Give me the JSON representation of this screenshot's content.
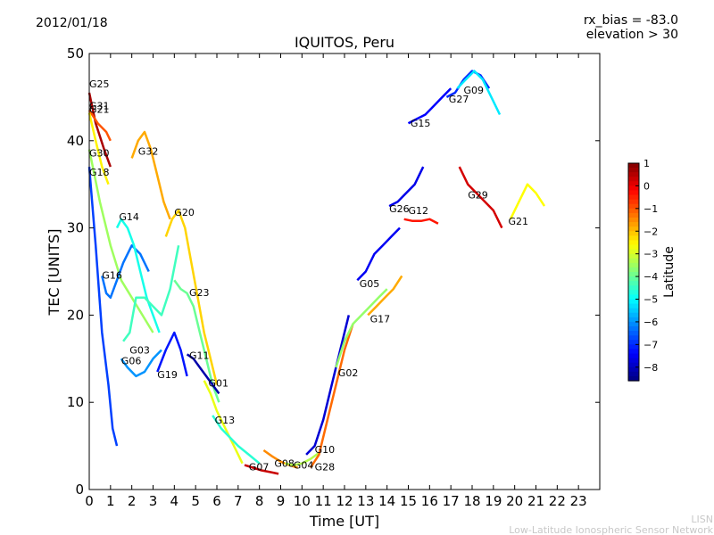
{
  "header": {
    "date": "2012/01/18",
    "bias_line": "rx_bias = -83.0",
    "elevation_line": "elevation > 30"
  },
  "footer": {
    "line1": "LISN",
    "line2": "Low-Latitude Ionospheric Sensor Network"
  },
  "colorbar": {
    "label": "Latitude",
    "ticks": [
      "1",
      "0",
      "−1",
      "−2",
      "−3",
      "−4",
      "−5",
      "−6",
      "−7",
      "−8"
    ],
    "range": [
      -8.6,
      1.0
    ],
    "colormap": [
      "#00007f",
      "#0000ff",
      "#007fff",
      "#00ffff",
      "#7fff7f",
      "#ffff00",
      "#ff7f00",
      "#ff0000",
      "#7f0000"
    ]
  },
  "chart_data": {
    "type": "line",
    "title": "IQUITOS, Peru",
    "xlabel": "Time [UT]",
    "ylabel": "TEC [UNITS]",
    "xlim": [
      0,
      24
    ],
    "ylim": [
      0,
      50
    ],
    "x_ticks": [
      "0",
      "1",
      "2",
      "3",
      "4",
      "5",
      "6",
      "7",
      "8",
      "9",
      "10",
      "11",
      "12",
      "13",
      "14",
      "15",
      "16",
      "17",
      "18",
      "19",
      "20",
      "21",
      "22",
      "23"
    ],
    "y_ticks": [
      "0",
      "10",
      "20",
      "30",
      "40",
      "50"
    ],
    "grid": false,
    "series": [
      {
        "name": "G25",
        "label_x": 0.0,
        "label_y": 46.5,
        "x": [
          0,
          0.3,
          0.7,
          1.0
        ],
        "y": [
          45.5,
          42,
          39,
          37
        ],
        "lat": 0.6
      },
      {
        "name": "G31",
        "label_x": 0.0,
        "label_y": 44.0,
        "x": [
          0,
          0.4,
          0.8,
          1.0
        ],
        "y": [
          43.5,
          42,
          41,
          40
        ],
        "lat": -1.0
      },
      {
        "name": "G21",
        "label_x": 0.0,
        "label_y": 43.6,
        "x": [
          0,
          0.3,
          0.6,
          0.9
        ],
        "y": [
          43.2,
          40,
          37,
          35
        ],
        "lat": -2.5
      },
      {
        "name": "G30",
        "label_x": 0.0,
        "label_y": 38.6,
        "x": [
          0,
          0.5,
          1.0,
          1.5,
          2.0,
          2.5,
          3.0
        ],
        "y": [
          39,
          33,
          28,
          24,
          22,
          20,
          18
        ],
        "lat": -3.5
      },
      {
        "name": "G18",
        "label_x": 0.0,
        "label_y": 36.4,
        "x": [
          0,
          0.3,
          0.6,
          0.9,
          1.1,
          1.3
        ],
        "y": [
          37,
          28,
          18,
          12,
          7,
          5
        ],
        "lat": -6.8
      },
      {
        "name": "G16",
        "label_x": 0.6,
        "label_y": 24.6,
        "x": [
          0.6,
          0.8,
          1.0,
          1.3,
          1.6,
          2.0,
          2.4,
          2.8
        ],
        "y": [
          24.5,
          22.5,
          22,
          24,
          26,
          28,
          27,
          25
        ],
        "lat": -6.3
      },
      {
        "name": "G14",
        "label_x": 1.4,
        "label_y": 31.3,
        "x": [
          1.3,
          1.5,
          1.8,
          2.1,
          2.4,
          2.7,
          3.0,
          3.3
        ],
        "y": [
          30,
          31,
          30,
          28,
          25,
          22,
          20,
          18
        ],
        "lat": -4.8
      },
      {
        "name": "G32",
        "label_x": 2.3,
        "label_y": 38.8,
        "x": [
          2.0,
          2.3,
          2.6,
          2.9,
          3.2,
          3.5,
          3.8
        ],
        "y": [
          38,
          40,
          41,
          39,
          36,
          33,
          31
        ],
        "lat": -1.8
      },
      {
        "name": "G03",
        "label_x": 1.9,
        "label_y": 16.0,
        "x": [
          1.6,
          1.9,
          2.2,
          2.6,
          3.0,
          3.4,
          3.8,
          4.2
        ],
        "y": [
          17,
          18,
          22,
          22,
          21,
          20,
          23,
          28
        ],
        "lat": -4.4
      },
      {
        "name": "G06",
        "label_x": 1.5,
        "label_y": 14.8,
        "x": [
          1.5,
          1.8,
          2.2,
          2.6,
          3.0,
          3.4
        ],
        "y": [
          15,
          14,
          13,
          13.5,
          15,
          16
        ],
        "lat": -6.0
      },
      {
        "name": "G19",
        "label_x": 3.2,
        "label_y": 13.2,
        "x": [
          3.2,
          3.6,
          4.0,
          4.3,
          4.6
        ],
        "y": [
          13.5,
          16,
          18,
          16,
          13
        ],
        "lat": -7.2
      },
      {
        "name": "G20",
        "label_x": 4.0,
        "label_y": 31.8,
        "x": [
          3.6,
          3.9,
          4.2,
          4.5,
          4.8,
          5.1,
          5.4,
          5.7,
          6.0
        ],
        "y": [
          29,
          31,
          32,
          30,
          26,
          22,
          18,
          15,
          12
        ],
        "lat": -2.2
      },
      {
        "name": "G23",
        "label_x": 4.7,
        "label_y": 22.6,
        "x": [
          4.0,
          4.3,
          4.6,
          4.9,
          5.2,
          5.5,
          5.8,
          6.1
        ],
        "y": [
          24,
          23,
          22.5,
          21,
          18,
          15,
          12,
          10
        ],
        "lat": -4.0
      },
      {
        "name": "G11",
        "label_x": 4.7,
        "label_y": 15.4,
        "x": [
          4.6,
          4.9,
          5.2,
          5.5,
          5.8,
          6.1
        ],
        "y": [
          15.5,
          15,
          14,
          13,
          12,
          11
        ],
        "lat": -8.2
      },
      {
        "name": "G01",
        "label_x": 5.6,
        "label_y": 12.2,
        "x": [
          5.4,
          5.7,
          6.0,
          6.4,
          6.8,
          7.2
        ],
        "y": [
          12.5,
          11,
          9,
          7,
          5,
          3
        ],
        "lat": -2.8
      },
      {
        "name": "G13",
        "label_x": 5.9,
        "label_y": 8.0,
        "x": [
          5.8,
          6.2,
          6.6,
          7.0,
          7.5,
          8.0
        ],
        "y": [
          8.5,
          7,
          6,
          5,
          4,
          3
        ],
        "lat": -4.6
      },
      {
        "name": "G07",
        "label_x": 7.5,
        "label_y": 2.6,
        "x": [
          7.3,
          7.7,
          8.1,
          8.5,
          8.9
        ],
        "y": [
          2.8,
          2.5,
          2.2,
          2.0,
          1.8
        ],
        "lat": 0.3
      },
      {
        "name": "G08",
        "label_x": 8.7,
        "label_y": 3.0,
        "x": [
          8.2,
          8.6,
          9.0,
          9.4,
          9.8
        ],
        "y": [
          4.5,
          3.8,
          3.2,
          2.8,
          2.5
        ],
        "lat": -1.5
      },
      {
        "name": "G04",
        "label_x": 9.6,
        "label_y": 2.8,
        "x": [
          9.2,
          9.6,
          10.0,
          10.4,
          10.8
        ],
        "y": [
          3.0,
          2.8,
          3.0,
          3.5,
          4.2
        ],
        "lat": -3.3
      },
      {
        "name": "G10",
        "label_x": 10.6,
        "label_y": 4.6,
        "x": [
          10.2,
          10.6,
          11.0,
          11.4,
          11.8,
          12.2
        ],
        "y": [
          4,
          5,
          8,
          12,
          16,
          20
        ],
        "lat": -7.8
      },
      {
        "name": "G28",
        "label_x": 10.6,
        "label_y": 2.6,
        "x": [
          10.4,
          10.8,
          11.2,
          11.6,
          12.0,
          12.4
        ],
        "y": [
          2.5,
          4,
          8,
          12,
          16,
          19
        ],
        "lat": -1.2
      },
      {
        "name": "G02",
        "label_x": 11.7,
        "label_y": 13.4,
        "x": [
          11.6,
          12.0,
          12.4,
          12.8,
          13.2,
          13.6,
          14.0
        ],
        "y": [
          14,
          17,
          19,
          20,
          21,
          22,
          23
        ],
        "lat": -3.6
      },
      {
        "name": "G05",
        "label_x": 12.7,
        "label_y": 23.6,
        "x": [
          12.6,
          13.0,
          13.4,
          13.8,
          14.2,
          14.6
        ],
        "y": [
          24,
          25,
          27,
          28,
          29,
          30
        ],
        "lat": -7.5
      },
      {
        "name": "G17",
        "label_x": 13.2,
        "label_y": 19.6,
        "x": [
          13.1,
          13.5,
          13.9,
          14.3,
          14.7
        ],
        "y": [
          20,
          21,
          22,
          23,
          24.5
        ],
        "lat": -1.8
      },
      {
        "name": "G26",
        "label_x": 14.1,
        "label_y": 32.2,
        "x": [
          14.1,
          14.5,
          14.9,
          15.3,
          15.7
        ],
        "y": [
          32.5,
          33,
          34,
          35,
          37
        ],
        "lat": -7.6
      },
      {
        "name": "G12",
        "label_x": 15.0,
        "label_y": 32.0,
        "x": [
          14.8,
          15.2,
          15.6,
          16.0,
          16.4
        ],
        "y": [
          31,
          30.8,
          30.8,
          31,
          30.5
        ],
        "lat": -0.4
      },
      {
        "name": "G15",
        "label_x": 15.1,
        "label_y": 42.0,
        "x": [
          15.0,
          15.4,
          15.8,
          16.2,
          16.6,
          17.0
        ],
        "y": [
          42,
          42.5,
          43,
          44,
          45,
          46
        ],
        "lat": -7.4
      },
      {
        "name": "G27",
        "label_x": 16.9,
        "label_y": 44.8,
        "x": [
          16.8,
          17.2,
          17.6,
          18.0,
          18.4,
          18.8
        ],
        "y": [
          45,
          45.5,
          47,
          48,
          47.5,
          46
        ],
        "lat": -7.0
      },
      {
        "name": "G09",
        "label_x": 17.6,
        "label_y": 45.8,
        "x": [
          17.3,
          17.7,
          18.1,
          18.5,
          18.9,
          19.3
        ],
        "y": [
          46,
          47,
          48,
          47,
          45,
          43
        ],
        "lat": -5.2
      },
      {
        "name": "G29",
        "label_x": 17.8,
        "label_y": 33.8,
        "x": [
          17.4,
          17.8,
          18.2,
          18.6,
          19.0,
          19.4
        ],
        "y": [
          37,
          35,
          34,
          33,
          32,
          30
        ],
        "lat": 0.2
      },
      {
        "name": "G21b",
        "label_x": 19.7,
        "label_y": 30.8,
        "x": [
          19.8,
          20.2,
          20.6,
          21.0,
          21.4
        ],
        "y": [
          31,
          33,
          35,
          34,
          32.5
        ],
        "lat": -2.6
      }
    ]
  }
}
